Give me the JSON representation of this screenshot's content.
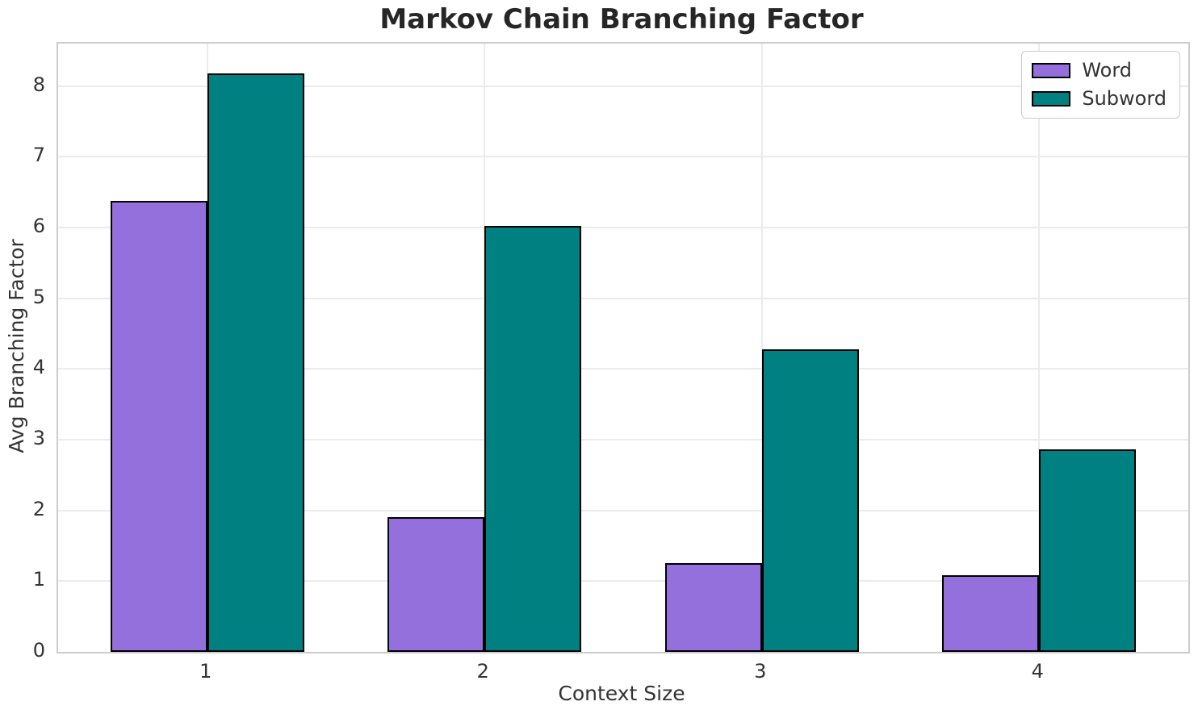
{
  "title": "Markov Chain Branching Factor",
  "chart_data": {
    "type": "bar",
    "categories": [
      "1",
      "2",
      "3",
      "4"
    ],
    "series": [
      {
        "name": "Word",
        "color": "#9370DB",
        "values": [
          6.38,
          1.91,
          1.25,
          1.08
        ]
      },
      {
        "name": "Subword",
        "color": "#008080",
        "values": [
          8.18,
          6.02,
          4.28,
          2.86
        ]
      }
    ],
    "title": "Markov Chain Branching Factor",
    "xlabel": "Context Size",
    "ylabel": "Avg Branching Factor",
    "yticks": [
      0,
      1,
      2,
      3,
      4,
      5,
      6,
      7,
      8
    ],
    "xlim": [
      0.462,
      4.538
    ],
    "ylim": [
      0,
      8.6
    ],
    "bar_width": 0.35,
    "grid": true,
    "legend_position": "upper right",
    "edge_color": "#000000",
    "grid_color": "#ebebeb",
    "spine_color": "#cccccc",
    "text_color": "#333333",
    "title_color": "#262626"
  }
}
